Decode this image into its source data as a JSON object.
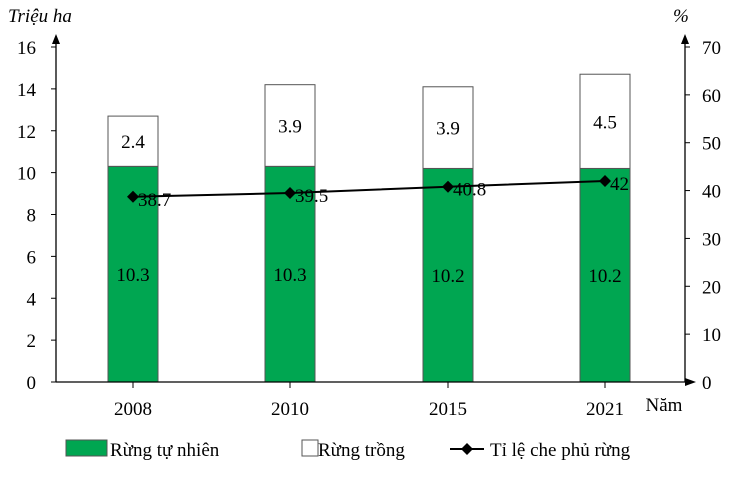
{
  "chart_data": {
    "type": "bar",
    "stacked": true,
    "categories": [
      "2008",
      "2010",
      "2015",
      "2021"
    ],
    "series": [
      {
        "name": "Rừng tự nhiên",
        "type": "bar",
        "axis": "left",
        "color": "#00a651",
        "values": [
          10.3,
          10.3,
          10.2,
          10.2
        ]
      },
      {
        "name": "Rừng trồng",
        "type": "bar",
        "axis": "left",
        "color": "#ffffff",
        "values": [
          2.4,
          3.9,
          3.9,
          4.5
        ]
      },
      {
        "name": "Tỉ lệ che phủ rừng",
        "type": "line",
        "axis": "right",
        "color": "#000000",
        "values": [
          38.7,
          39.5,
          40.8,
          42
        ]
      }
    ],
    "y_left": {
      "label": "Triệu ha",
      "ylim": [
        0,
        16
      ],
      "ticks": [
        "0",
        "2",
        "4",
        "6",
        "8",
        "10",
        "12",
        "14",
        "16"
      ]
    },
    "y_right": {
      "label": "%",
      "ylim": [
        0,
        70
      ],
      "ticks": [
        "0",
        "10",
        "20",
        "30",
        "40",
        "50",
        "60",
        "70"
      ]
    },
    "xlabel": "Năm",
    "legend_position": "bottom",
    "grid": false
  }
}
